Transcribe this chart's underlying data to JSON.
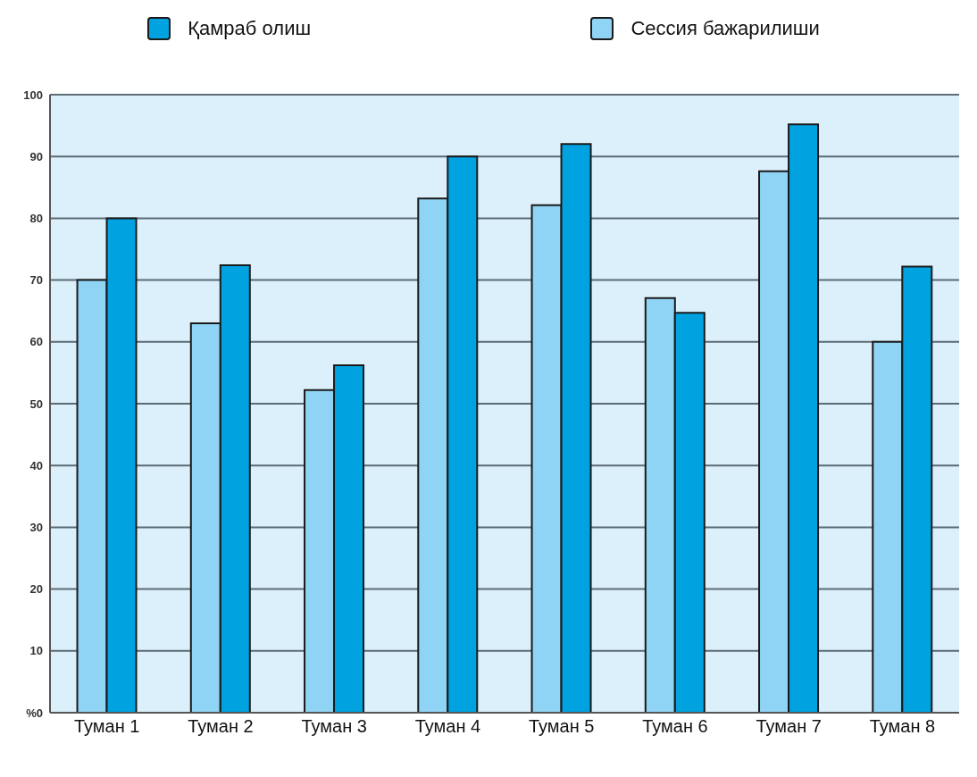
{
  "chart_data": {
    "type": "bar",
    "categories": [
      "Туман 1",
      "Туман 2",
      "Туман 3",
      "Туман 4",
      "Туман 5",
      "Туман 6",
      "Туман 7",
      "Туман 8"
    ],
    "series": [
      {
        "name": "Сессия бажарилиши",
        "color": "#8fd4f5",
        "values": [
          70,
          63,
          52.2,
          83.2,
          82.1,
          67.1,
          87.6,
          60
        ]
      },
      {
        "name": "Қамраб олиш",
        "color": "#00a3e0",
        "values": [
          80,
          72.4,
          56.2,
          90,
          92,
          64.7,
          95.2,
          72.2
        ]
      }
    ],
    "ylim": [
      0,
      100
    ],
    "yticks": [
      {
        "value": 0,
        "label": "%0"
      },
      10,
      20,
      30,
      40,
      50,
      60,
      70,
      80,
      90,
      100
    ],
    "grid": "y",
    "legend": "top"
  }
}
